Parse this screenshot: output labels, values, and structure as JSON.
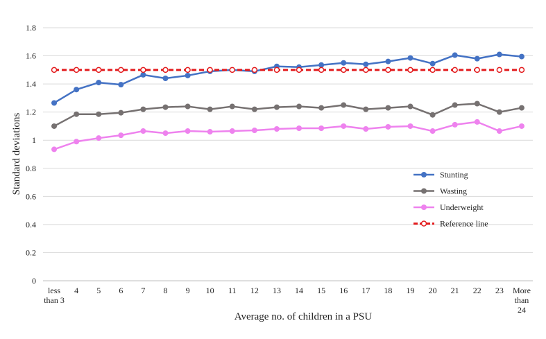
{
  "chart_data": {
    "type": "line",
    "title": "",
    "xlabel": "Average no. of children in a PSU",
    "ylabel": "Standard deviations",
    "ylim": [
      0,
      1.8
    ],
    "yticks": [
      "0",
      "0.2",
      "0.4",
      "0.6",
      "0.8",
      "1",
      "1.2",
      "1.4",
      "1.6",
      "1.8"
    ],
    "categories": [
      [
        "less",
        "than 3"
      ],
      [
        "4"
      ],
      [
        "5"
      ],
      [
        "6"
      ],
      [
        "7"
      ],
      [
        "8"
      ],
      [
        "9"
      ],
      [
        "10"
      ],
      [
        "11"
      ],
      [
        "12"
      ],
      [
        "13"
      ],
      [
        "14"
      ],
      [
        "15"
      ],
      [
        "16"
      ],
      [
        "17"
      ],
      [
        "18"
      ],
      [
        "19"
      ],
      [
        "20"
      ],
      [
        "21"
      ],
      [
        "22"
      ],
      [
        "23"
      ],
      [
        "More",
        "than",
        "24"
      ]
    ],
    "legend_position": "right",
    "series": [
      {
        "name": "Stunting",
        "color": "#4472C4",
        "style": "solid",
        "values": [
          1.265,
          1.36,
          1.41,
          1.395,
          1.465,
          1.44,
          1.46,
          1.49,
          1.5,
          1.49,
          1.525,
          1.52,
          1.535,
          1.55,
          1.54,
          1.56,
          1.585,
          1.545,
          1.605,
          1.58,
          1.61,
          1.595
        ]
      },
      {
        "name": "Wasting",
        "color": "#767171",
        "style": "solid",
        "values": [
          1.1,
          1.185,
          1.185,
          1.195,
          1.22,
          1.235,
          1.24,
          1.22,
          1.24,
          1.22,
          1.235,
          1.24,
          1.23,
          1.25,
          1.22,
          1.23,
          1.24,
          1.18,
          1.25,
          1.26,
          1.2,
          1.23
        ]
      },
      {
        "name": "Underweight",
        "color": "#EE82EE",
        "style": "solid",
        "values": [
          0.935,
          0.99,
          1.015,
          1.035,
          1.065,
          1.05,
          1.065,
          1.06,
          1.065,
          1.07,
          1.08,
          1.085,
          1.085,
          1.1,
          1.08,
          1.095,
          1.1,
          1.065,
          1.11,
          1.13,
          1.065,
          1.1
        ]
      },
      {
        "name": "Reference line",
        "color": "#E31A1C",
        "style": "dashed",
        "values": [
          1.5,
          1.5,
          1.5,
          1.5,
          1.5,
          1.5,
          1.5,
          1.5,
          1.5,
          1.5,
          1.5,
          1.5,
          1.5,
          1.5,
          1.5,
          1.5,
          1.5,
          1.5,
          1.5,
          1.5,
          1.5,
          1.5
        ]
      }
    ]
  }
}
